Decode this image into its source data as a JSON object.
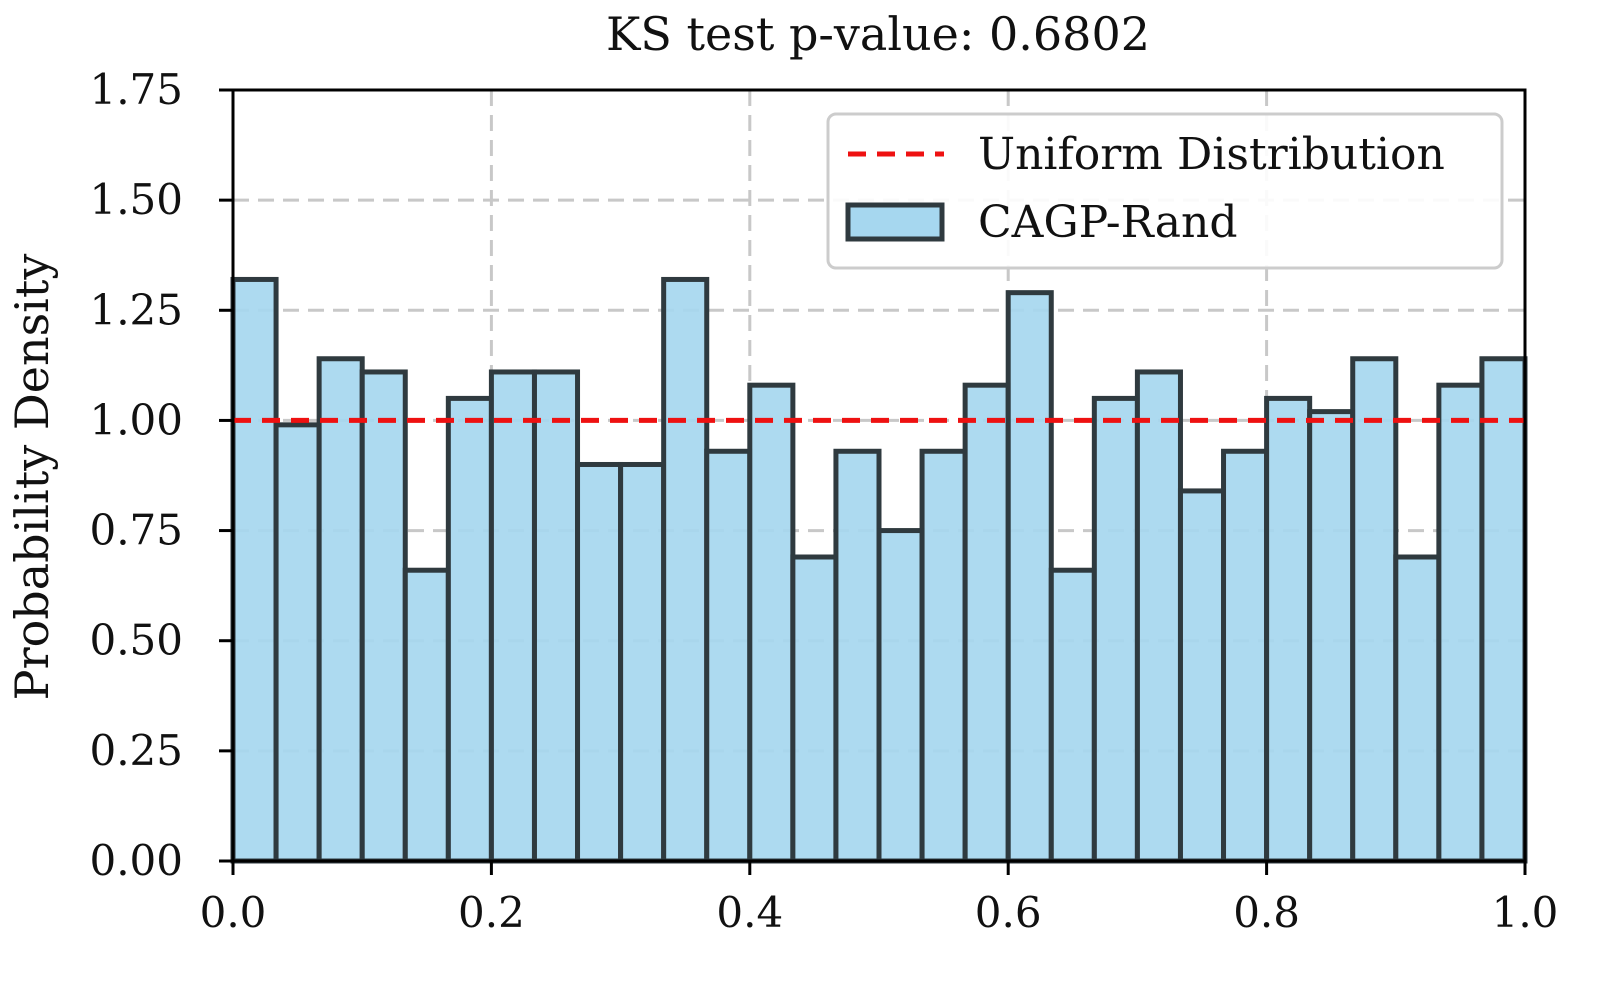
{
  "chart_data": {
    "type": "bar",
    "title": "KS test p-value: 0.6802",
    "xlabel": "",
    "ylabel": "Probability Density",
    "xlim": [
      0.0,
      1.0
    ],
    "ylim": [
      0.0,
      1.75
    ],
    "grid": true,
    "bins": 30,
    "xticks": [
      {
        "value": 0.0,
        "label": "0.0"
      },
      {
        "value": 0.2,
        "label": "0.2"
      },
      {
        "value": 0.4,
        "label": "0.4"
      },
      {
        "value": 0.6,
        "label": "0.6"
      },
      {
        "value": 0.8,
        "label": "0.8"
      },
      {
        "value": 1.0,
        "label": "1.0"
      }
    ],
    "yticks": [
      {
        "value": 0.0,
        "label": "0.00"
      },
      {
        "value": 0.25,
        "label": "0.25"
      },
      {
        "value": 0.5,
        "label": "0.50"
      },
      {
        "value": 0.75,
        "label": "0.75"
      },
      {
        "value": 1.0,
        "label": "1.00"
      },
      {
        "value": 1.25,
        "label": "1.25"
      },
      {
        "value": 1.5,
        "label": "1.50"
      },
      {
        "value": 1.75,
        "label": "1.75"
      }
    ],
    "series": [
      {
        "name": "CAGP-Rand",
        "kind": "histogram",
        "color": "#a6d7ef",
        "edge_color": "#2f3a3f",
        "values": [
          1.32,
          0.99,
          1.14,
          1.11,
          0.66,
          1.05,
          1.11,
          1.11,
          0.9,
          0.9,
          1.32,
          0.93,
          1.08,
          0.69,
          0.93,
          0.75,
          0.93,
          1.08,
          1.29,
          0.66,
          1.05,
          1.11,
          0.84,
          0.93,
          1.05,
          1.02,
          1.14,
          0.69,
          1.08,
          1.14
        ]
      },
      {
        "name": "Uniform Distribution",
        "kind": "line",
        "style": "dashed",
        "color": "#ee1111",
        "x": [
          0.0,
          1.0
        ],
        "y": [
          1.0,
          1.0
        ]
      }
    ],
    "legend": {
      "placement": "top-right",
      "entries": [
        {
          "label": "Uniform Distribution",
          "kind": "line"
        },
        {
          "label": "CAGP-Rand",
          "kind": "patch"
        }
      ]
    }
  }
}
